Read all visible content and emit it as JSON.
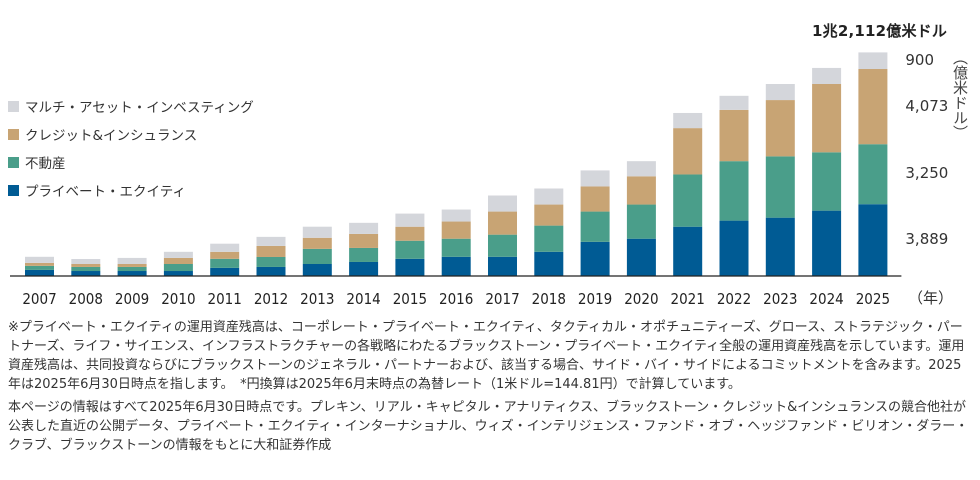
{
  "chart_data": {
    "type": "bar",
    "stacked": true,
    "title": "",
    "xlabel": "（年）",
    "ylabel": "（億米ドル）",
    "categories": [
      "2007",
      "2008",
      "2009",
      "2010",
      "2011",
      "2012",
      "2013",
      "2014",
      "2015",
      "2016",
      "2017",
      "2018",
      "2019",
      "2020",
      "2021",
      "2022",
      "2023",
      "2024",
      "2025"
    ],
    "series": [
      {
        "name": "プライベート・エクイティ",
        "color": "#005b94",
        "values": [
          330,
          270,
          270,
          270,
          440,
          490,
          650,
          760,
          930,
          1040,
          1040,
          1310,
          1850,
          2020,
          2670,
          3000,
          3160,
          3540,
          3889
        ]
      },
      {
        "name": "不動産",
        "color": "#4a9e8a",
        "values": [
          220,
          220,
          220,
          380,
          490,
          540,
          820,
          760,
          980,
          980,
          1200,
          1420,
          1640,
          1850,
          2830,
          3220,
          3320,
          3160,
          3250
        ]
      },
      {
        "name": "クレジット&インシュランス",
        "color": "#c8a474",
        "values": [
          160,
          160,
          160,
          330,
          380,
          600,
          600,
          760,
          760,
          930,
          1250,
          1140,
          1360,
          1530,
          2510,
          2780,
          3050,
          3700,
          4073
        ]
      },
      {
        "name": "マルチ・アセット・インベスティング",
        "color": "#d4d6db",
        "values": [
          330,
          270,
          330,
          330,
          440,
          490,
          600,
          600,
          710,
          650,
          870,
          870,
          870,
          820,
          820,
          760,
          870,
          870,
          900
        ]
      }
    ],
    "ylim": [
      0,
      13000
    ],
    "grid": false,
    "legend_position": "left",
    "annotations": {
      "total_2025": "1兆2,112億米ドル",
      "segment_labels_2025": [
        "900",
        "4,073",
        "3,250",
        "3,889"
      ]
    }
  },
  "legend": [
    {
      "label": "マルチ・アセット・インベスティング",
      "color": "#d4d6db"
    },
    {
      "label": "クレジット&インシュランス",
      "color": "#c8a474"
    },
    {
      "label": "不動産",
      "color": "#4a9e8a"
    },
    {
      "label": "プライベート・エクイティ",
      "color": "#005b94"
    }
  ],
  "labels": {
    "total": "1兆2,112億米ドル",
    "unit": "（億米ドル）",
    "year_unit": "（年）",
    "seg_multi": "900",
    "seg_credit": "4,073",
    "seg_re": "3,250",
    "seg_pe": "3,889"
  },
  "notes": {
    "note1": "※プライベート・エクイティの運用資産残高は、コーポレート・プライベート・エクイティ、タクティカル・オポチュニティーズ、グロース、ストラテジック・パートナーズ、ライフ・サイエンス、インフラストラクチャーの各戦略にわたるブラックストーン・プライベート・エクイティ全般の運用資産残高を示しています。運用資産残高は、共同投資ならびにブラックストーンのジェネラル・パートナーおよび、該当する場合、サイド・バイ・サイドによるコミットメントを含みます。2025年は2025年6月30日時点を指します。　*円換算は2025年6月末時点の為替レート（1米ドル=144.81円）で計算しています。",
    "note2": "本ページの情報はすべて2025年6月30日時点です。プレキン、リアル・キャピタル・アナリティクス、ブラックストーン・クレジット&インシュランスの競合他社が公表した直近の公開データ、プライベート・エクイティ・インターナショナル、ウィズ・インテリジェンス・ファンド・オブ・ヘッジファンド・ビリオン・ダラー・クラブ、ブラックストーンの情報をもとに大和証券作成"
  }
}
